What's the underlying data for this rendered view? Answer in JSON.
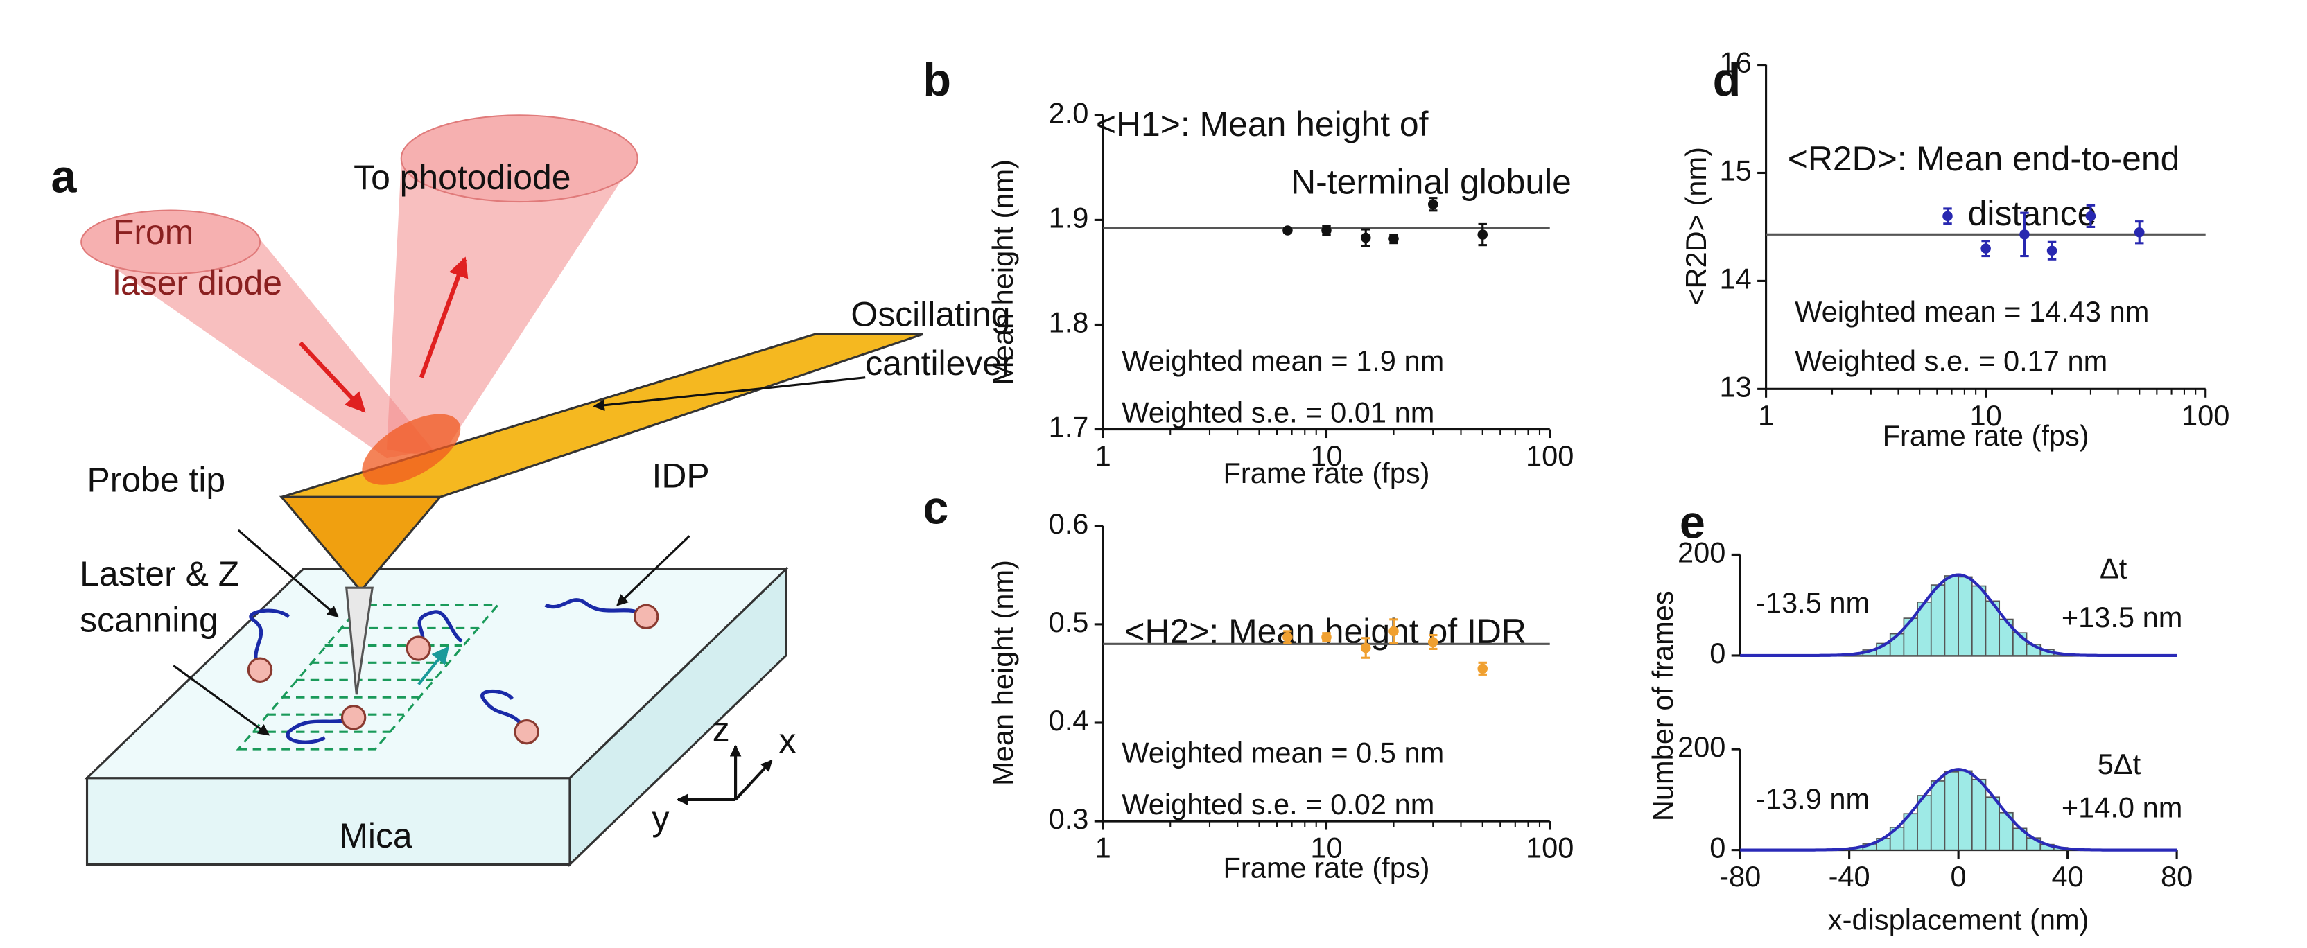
{
  "diagram": {
    "panel_label": "a",
    "from_laser": [
      "From",
      "laser diode"
    ],
    "to_photodiode": "To photodiode",
    "cantilever": [
      "Oscillating",
      "cantilever"
    ],
    "probe_tip": "Probe tip",
    "idp": "IDP",
    "scanning": [
      "Laster & Z",
      "scanning"
    ],
    "mica": "Mica",
    "axes": [
      "z",
      "x",
      "y"
    ]
  },
  "chart_data": [
    {
      "type": "scatter",
      "panel_label": "b",
      "title": [
        "<H1>: Mean height of",
        "N-terminal globule"
      ],
      "xlabel": "Frame rate (fps)",
      "ylabel": "Mean height  (nm)",
      "xscale": "log",
      "xlim": [
        1,
        100
      ],
      "xticks": [
        1,
        10,
        100
      ],
      "ylim": [
        1.7,
        2.0
      ],
      "yticks": [
        1.7,
        1.8,
        1.9,
        {
          "value": 2.0,
          "label": "2.0"
        }
      ],
      "color": "#111111",
      "x": [
        6.7,
        10,
        15,
        20,
        30,
        50
      ],
      "values": [
        1.89,
        1.89,
        1.883,
        1.882,
        1.915,
        1.886
      ],
      "errors": [
        0.002,
        0.004,
        0.008,
        0.004,
        0.006,
        0.01
      ],
      "reference_line": 1.892,
      "annotations": [
        "Weighted mean = 1.9 nm",
        "Weighted s.e. = 0.01 nm"
      ]
    },
    {
      "type": "scatter",
      "panel_label": "c",
      "title": [
        "<H2>: Mean height of IDR"
      ],
      "xlabel": "Frame rate (fps)",
      "ylabel": "Mean height  (nm)",
      "xscale": "log",
      "xlim": [
        1,
        100
      ],
      "xticks": [
        1,
        10,
        100
      ],
      "ylim": [
        0.3,
        0.6
      ],
      "yticks": [
        0.3,
        0.4,
        0.5,
        0.6
      ],
      "color": "#f0a030",
      "x": [
        6.7,
        10,
        15,
        20,
        30,
        50
      ],
      "values": [
        0.487,
        0.487,
        0.476,
        0.493,
        0.482,
        0.455
      ],
      "errors": [
        0.006,
        0.004,
        0.01,
        0.012,
        0.007,
        0.006
      ],
      "reference_line": 0.48,
      "annotations": [
        "Weighted mean = 0.5 nm",
        "Weighted s.e. = 0.02 nm"
      ]
    },
    {
      "type": "scatter",
      "panel_label": "d",
      "title": [
        "<R2D>: Mean end-to-end",
        "distance"
      ],
      "xlabel": "Frame rate (fps)",
      "ylabel": "<R2D> (nm)",
      "xscale": "log",
      "xlim": [
        1,
        100
      ],
      "xticks": [
        1,
        10,
        100
      ],
      "ylim": [
        13,
        16
      ],
      "yticks": [
        13,
        14,
        15,
        16
      ],
      "color": "#2828b0",
      "x": [
        6.7,
        10,
        15,
        20,
        30,
        50
      ],
      "values": [
        14.6,
        14.3,
        14.43,
        14.28,
        14.6,
        14.45
      ],
      "errors": [
        0.07,
        0.07,
        0.2,
        0.08,
        0.1,
        0.1
      ],
      "reference_line": 14.43,
      "annotations": [
        "Weighted mean = 14.43 nm",
        "Weighted s.e. = 0.17 nm"
      ]
    },
    {
      "type": "histogram",
      "panel_label": "e",
      "ylabel": "Number of frames",
      "xlim": [
        -80,
        80
      ],
      "ylim": [
        0,
        200
      ],
      "yticks": [
        0,
        200
      ],
      "color": "#9eeae6",
      "fit_color": "#2a2ab8",
      "bins": [
        -45,
        -40,
        -35,
        -30,
        -25,
        -20,
        -15,
        -10,
        -5,
        0,
        5,
        10,
        15,
        20,
        25,
        30,
        35,
        40,
        45
      ],
      "counts": [
        2,
        4,
        11,
        24,
        43,
        74,
        106,
        140,
        158,
        156,
        138,
        108,
        72,
        45,
        22,
        12,
        4,
        2
      ],
      "fit_mean": 0,
      "fit_sd": 13.5,
      "fit_amplitude": 160,
      "annotations": [
        "Δt",
        "-13.5 nm",
        "+13.5 nm"
      ]
    },
    {
      "type": "histogram",
      "xlabel": "x-displacement (nm)",
      "xlim": [
        -80,
        80
      ],
      "xticks": [
        -80,
        -40,
        0,
        40,
        80
      ],
      "ylim": [
        0,
        200
      ],
      "yticks": [
        0,
        200
      ],
      "color": "#9eeae6",
      "fit_color": "#2a2ab8",
      "bins": [
        -45,
        -40,
        -35,
        -30,
        -25,
        -20,
        -15,
        -10,
        -5,
        0,
        5,
        10,
        15,
        20,
        25,
        30,
        35,
        40,
        45
      ],
      "counts": [
        2,
        5,
        12,
        23,
        45,
        72,
        108,
        137,
        155,
        157,
        140,
        105,
        74,
        43,
        24,
        11,
        5,
        2
      ],
      "fit_mean": 0,
      "fit_sd": 14.0,
      "fit_amplitude": 160,
      "annotations": [
        "5Δt",
        "-13.9 nm",
        "+14.0 nm"
      ]
    }
  ]
}
